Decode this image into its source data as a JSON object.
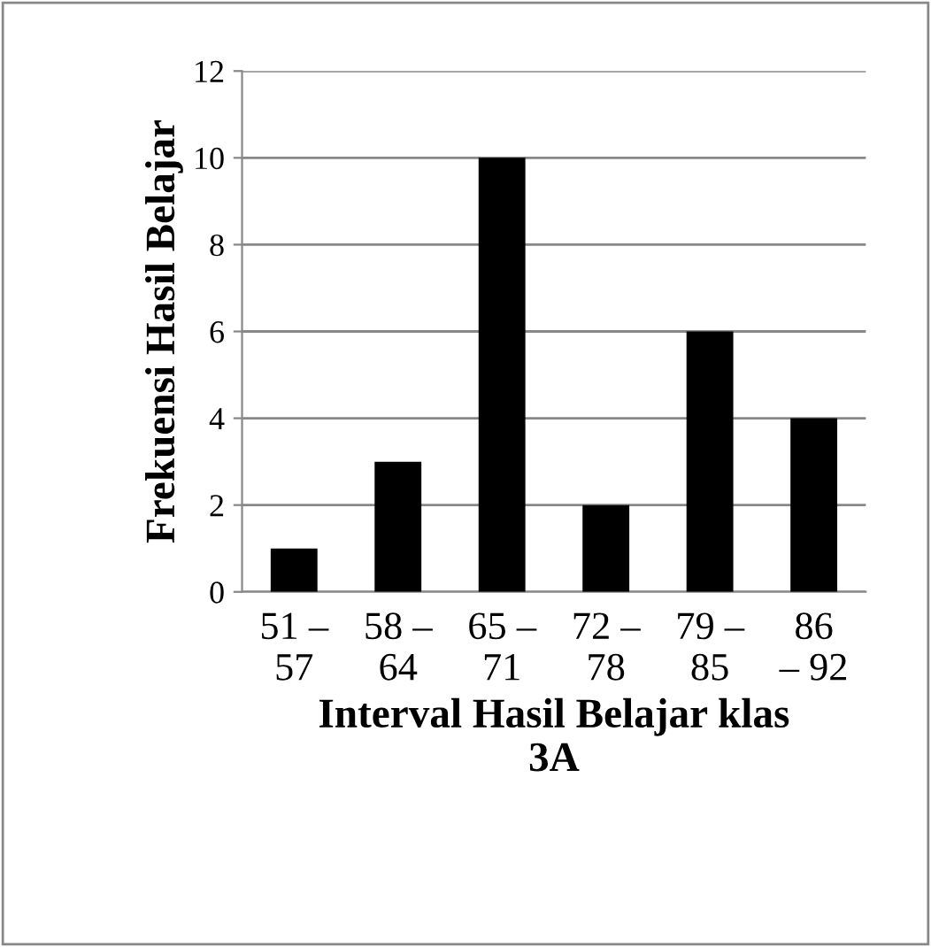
{
  "chart_data": {
    "type": "bar",
    "categories": [
      "51 –\n57",
      "58 –\n64",
      "65 –\n71",
      "72 –\n78",
      "79 –\n85",
      "86\n– 92"
    ],
    "values": [
      1,
      3,
      10,
      2,
      6,
      4
    ],
    "color": "#000000",
    "xlabel": "Interval Hasil Belajar klas\n3A",
    "ylabel": "Frekuensi Hasil Belajar",
    "ylim": [
      0,
      12
    ],
    "yticks": [
      0,
      2,
      4,
      6,
      8,
      10,
      12
    ],
    "grid": "y"
  }
}
